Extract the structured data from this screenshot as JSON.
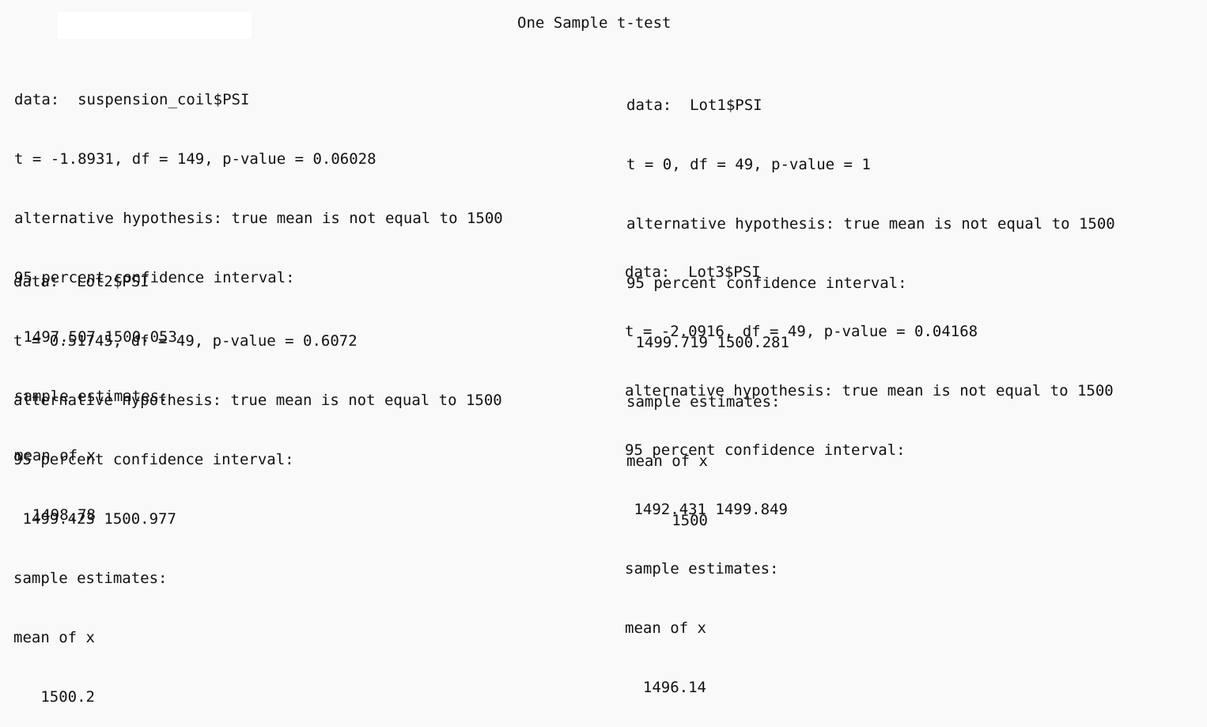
{
  "title": "One Sample t-test",
  "blocks": [
    {
      "lines": [
        "data:  suspension_coil$PSI",
        "t = -1.8931, df = 149, p-value = 0.06028",
        "alternative hypothesis: true mean is not equal to 1500",
        "95 percent confidence interval:",
        " 1497.507 1500.053",
        "sample estimates:",
        "mean of x",
        "  1498.78"
      ]
    },
    {
      "lines": [
        "data:  Lot1$PSI",
        "t = 0, df = 49, p-value = 1",
        "alternative hypothesis: true mean is not equal to 1500",
        "95 percent confidence interval:",
        " 1499.719 1500.281",
        "sample estimates:",
        "mean of x",
        "     1500"
      ]
    },
    {
      "lines": [
        "data:  Lot2$PSI",
        "t = 0.51745, df = 49, p-value = 0.6072",
        "alternative hypothesis: true mean is not equal to 1500",
        "95 percent confidence interval:",
        " 1499.423 1500.977",
        "sample estimates:",
        "mean of x",
        "   1500.2"
      ]
    },
    {
      "lines": [
        "data:  Lot3$PSI",
        "t = -2.0916, df = 49, p-value = 0.04168",
        "alternative hypothesis: true mean is not equal to 1500",
        "95 percent confidence interval:",
        " 1492.431 1499.849",
        "sample estimates:",
        "mean of x",
        "  1496.14"
      ]
    }
  ]
}
